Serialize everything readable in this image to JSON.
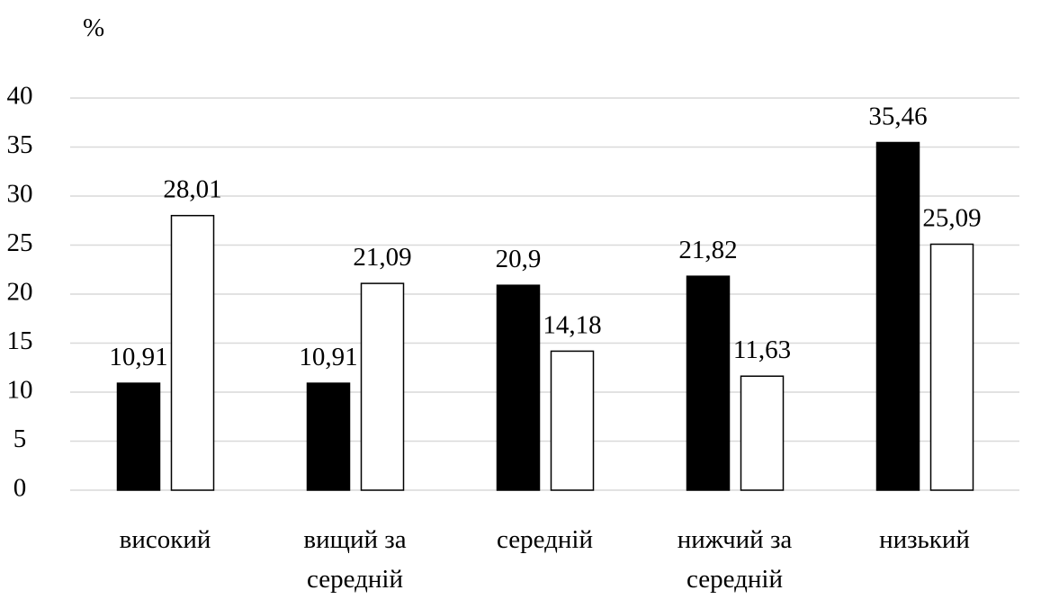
{
  "chart_data": {
    "type": "bar",
    "y_label": "%",
    "categories": [
      "високий",
      "вищий за середній",
      "середній",
      "нижчий за середній",
      "низький"
    ],
    "series": [
      {
        "color": "#000000",
        "values": [
          10.91,
          10.91,
          20.9,
          21.82,
          35.46
        ],
        "value_labels": [
          "10,91",
          "10,91",
          "20,9",
          "21,82",
          "35,46"
        ]
      },
      {
        "color": "#ffffff",
        "values": [
          28.01,
          21.09,
          14.18,
          11.63,
          25.09
        ],
        "value_labels": [
          "28,01",
          "21,09",
          "14,18",
          "11,63",
          "25,09"
        ]
      }
    ],
    "ylim": [
      0,
      40
    ],
    "yticks": [
      0,
      5,
      10,
      15,
      20,
      25,
      30,
      35,
      40
    ],
    "grid": true
  }
}
